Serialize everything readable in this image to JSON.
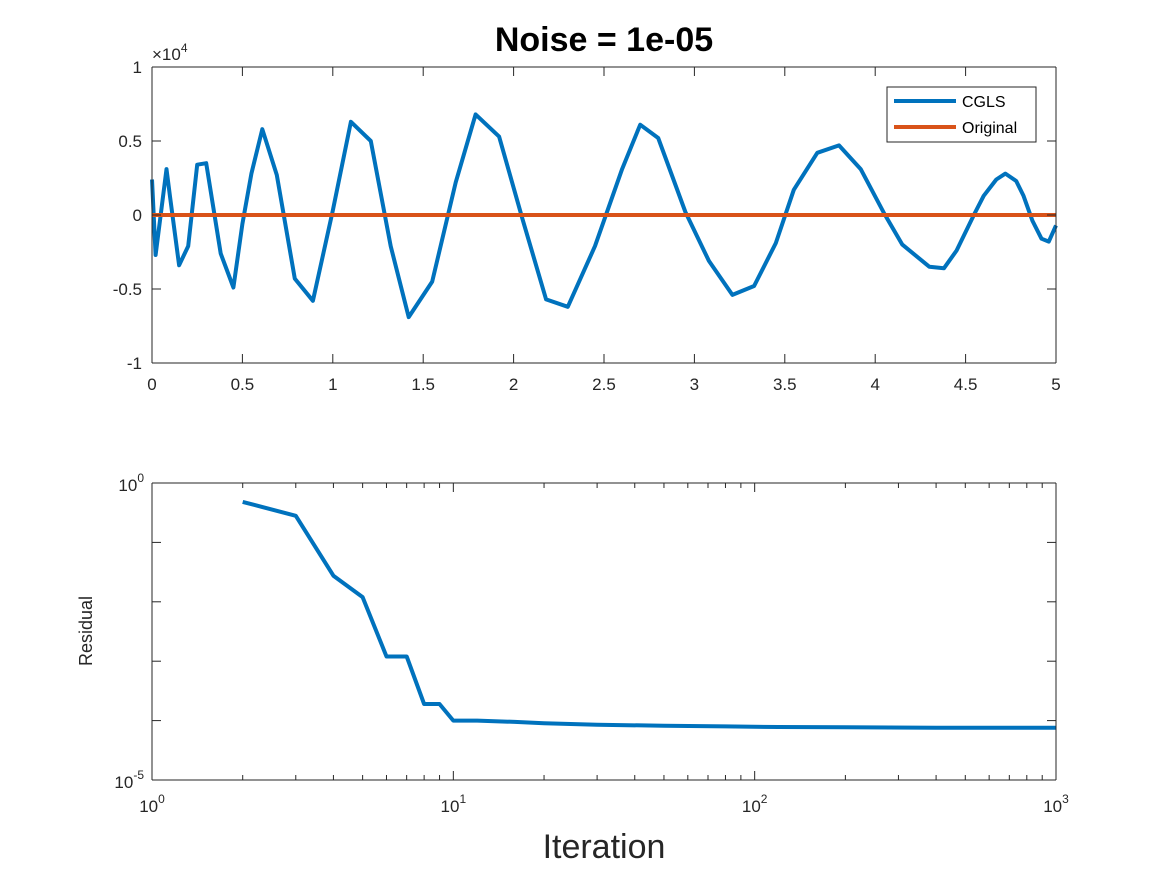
{
  "chart_data": [
    {
      "type": "line",
      "title": "Noise = 1e-05",
      "xlabel": "",
      "ylabel": "",
      "xlim": [
        0,
        5
      ],
      "ylim": [
        -10000,
        10000
      ],
      "y_exponent_label": "×10",
      "y_exponent_power": "4",
      "x_ticks": [
        "0",
        "0.5",
        "1",
        "1.5",
        "2",
        "2.5",
        "3",
        "3.5",
        "4",
        "4.5",
        "5"
      ],
      "y_ticks": [
        "-1",
        "-0.5",
        "0",
        "0.5",
        "1"
      ],
      "grid": false,
      "legend_position": "top-right",
      "series": [
        {
          "name": "CGLS",
          "color": "#0072BD",
          "x": [
            0,
            0.02,
            0.08,
            0.1,
            0.15,
            0.2,
            0.25,
            0.3,
            0.38,
            0.45,
            0.5,
            0.55,
            0.61,
            0.69,
            0.79,
            0.89,
            1.0,
            1.1,
            1.21,
            1.32,
            1.42,
            1.55,
            1.68,
            1.79,
            1.92,
            2.05,
            2.18,
            2.3,
            2.45,
            2.6,
            2.7,
            2.8,
            2.95,
            3.08,
            3.21,
            3.33,
            3.45,
            3.55,
            3.68,
            3.8,
            3.92,
            4.05,
            4.15,
            4.3,
            4.38,
            4.45,
            4.55,
            4.6,
            4.67,
            4.72,
            4.78,
            4.82,
            4.87,
            4.92,
            4.96,
            5.0
          ],
          "y": [
            2400,
            -2700,
            3100,
            1200,
            -3400,
            -2100,
            3400,
            3500,
            -2600,
            -4900,
            -600,
            2800,
            5800,
            2700,
            -4300,
            -5800,
            300,
            6300,
            5000,
            -2100,
            -6900,
            -4500,
            2200,
            6800,
            5300,
            -300,
            -5700,
            -6200,
            -2100,
            3100,
            6100,
            5200,
            200,
            -3100,
            -5400,
            -4800,
            -1900,
            1700,
            4200,
            4700,
            3100,
            100,
            -2000,
            -3500,
            -3600,
            -2400,
            100,
            1300,
            2400,
            2800,
            2300,
            1300,
            -400,
            -1600,
            -1800,
            -700
          ]
        },
        {
          "name": "Original",
          "color": "#D95319",
          "x": [
            0,
            5
          ],
          "y": [
            0,
            0
          ]
        }
      ]
    },
    {
      "type": "line",
      "title": "",
      "xlabel": "Iteration",
      "ylabel": "Residual",
      "x_scale": "log",
      "y_scale": "log",
      "xlim": [
        1,
        1000
      ],
      "ylim": [
        1e-05,
        1
      ],
      "x_ticks": [
        {
          "base": "10",
          "exp": "0"
        },
        {
          "base": "10",
          "exp": "1"
        },
        {
          "base": "10",
          "exp": "2"
        },
        {
          "base": "10",
          "exp": "3"
        }
      ],
      "y_ticks": [
        {
          "base": "10",
          "exp": "-5"
        },
        {
          "base": "10",
          "exp": "0"
        }
      ],
      "grid": false,
      "series": [
        {
          "color": "#0072BD",
          "x": [
            2,
            3,
            4,
            5,
            6,
            7,
            8,
            9,
            10,
            12,
            16,
            20,
            30,
            50,
            80,
            120,
            200,
            400,
            1000
          ],
          "y": [
            0.48,
            0.28,
            0.0275,
            0.012,
            0.0012,
            0.0012,
            0.00019,
            0.00019,
            0.0001,
            0.0001,
            9.5e-05,
            9e-05,
            8.5e-05,
            8.2e-05,
            8e-05,
            7.8e-05,
            7.7e-05,
            7.6e-05,
            7.6e-05
          ]
        }
      ]
    }
  ]
}
